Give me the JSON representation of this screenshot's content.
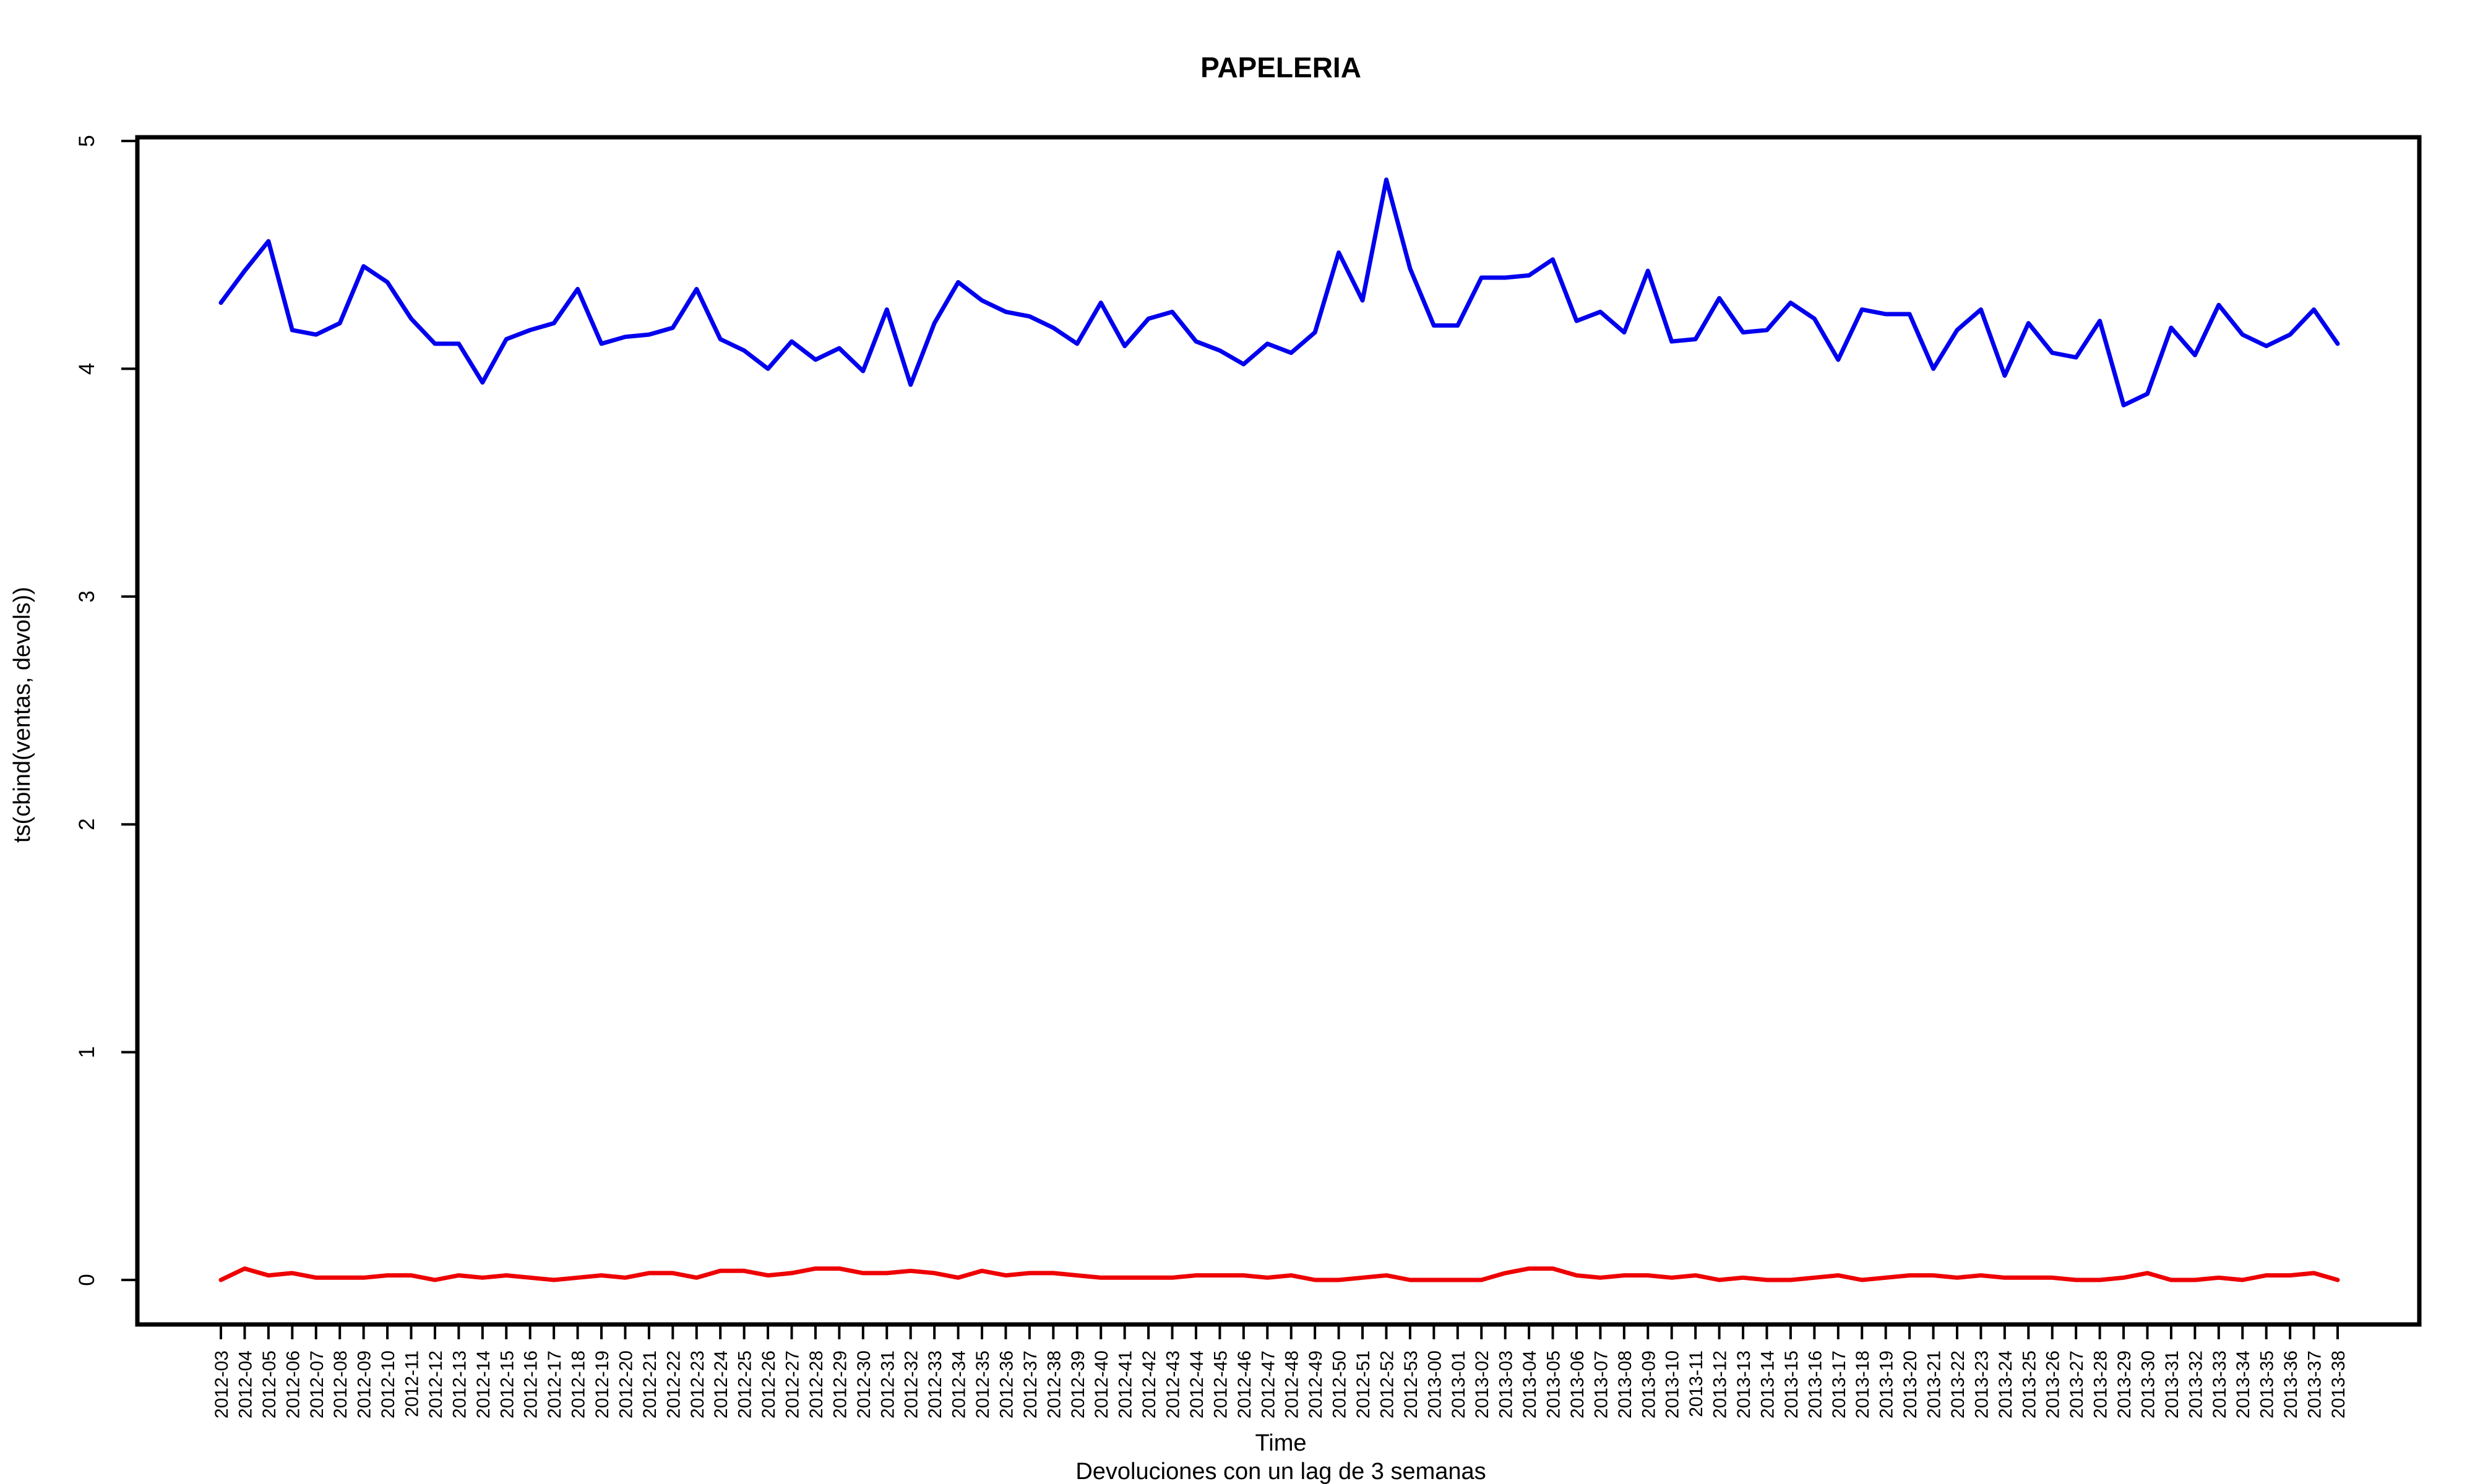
{
  "chart_data": {
    "type": "line",
    "title": "PAPELERIA",
    "xlabel": "Time",
    "ylabel": "ts(cbind(ventas, devols))",
    "subtitle": "Devoluciones con un lag de 3 semanas",
    "ylim": [
      0,
      5
    ],
    "yticks": [
      0,
      1,
      2,
      3,
      4,
      5
    ],
    "grid": false,
    "categories": [
      "2012-03",
      "2012-04",
      "2012-05",
      "2012-06",
      "2012-07",
      "2012-08",
      "2012-09",
      "2012-10",
      "2012-11",
      "2012-12",
      "2012-13",
      "2012-14",
      "2012-15",
      "2012-16",
      "2012-17",
      "2012-18",
      "2012-19",
      "2012-20",
      "2012-21",
      "2012-22",
      "2012-23",
      "2012-24",
      "2012-25",
      "2012-26",
      "2012-27",
      "2012-28",
      "2012-29",
      "2012-30",
      "2012-31",
      "2012-32",
      "2012-33",
      "2012-34",
      "2012-35",
      "2012-36",
      "2012-37",
      "2012-38",
      "2012-39",
      "2012-40",
      "2012-41",
      "2012-42",
      "2012-43",
      "2012-44",
      "2012-45",
      "2012-46",
      "2012-47",
      "2012-48",
      "2012-49",
      "2012-50",
      "2012-51",
      "2012-52",
      "2012-53",
      "2013-00",
      "2013-01",
      "2013-02",
      "2013-03",
      "2013-04",
      "2013-05",
      "2013-06",
      "2013-07",
      "2013-08",
      "2013-09",
      "2013-10",
      "2013-11",
      "2013-12",
      "2013-13",
      "2013-14",
      "2013-15",
      "2013-16",
      "2013-17",
      "2013-18",
      "2013-19",
      "2013-20",
      "2013-21",
      "2013-22",
      "2013-23",
      "2013-24",
      "2013-25",
      "2013-26",
      "2013-27",
      "2013-28",
      "2013-29",
      "2013-30",
      "2013-31",
      "2013-32",
      "2013-33",
      "2013-34",
      "2013-35",
      "2013-36",
      "2013-37",
      "2013-38"
    ],
    "series": [
      {
        "color": "#0000ee",
        "values": [
          4.29,
          4.43,
          4.56,
          4.17,
          4.15,
          4.2,
          4.45,
          4.38,
          4.22,
          4.11,
          4.11,
          3.94,
          4.13,
          4.17,
          4.2,
          4.35,
          4.11,
          4.14,
          4.15,
          4.18,
          4.35,
          4.13,
          4.08,
          4.0,
          4.12,
          4.04,
          4.09,
          3.99,
          4.26,
          3.93,
          4.2,
          4.38,
          4.3,
          4.25,
          4.23,
          4.18,
          4.11,
          4.29,
          4.1,
          4.22,
          4.25,
          4.12,
          4.08,
          4.02,
          4.11,
          4.07,
          4.16,
          4.51,
          4.3,
          4.83,
          4.44,
          4.19,
          4.19,
          4.4,
          4.4,
          4.41,
          4.48,
          4.21,
          4.25,
          4.16,
          4.43,
          4.12,
          4.13,
          4.31,
          4.16,
          4.17,
          4.29,
          4.22,
          4.04,
          4.26,
          4.24,
          4.24,
          4.0,
          4.17,
          4.26,
          3.97,
          4.2,
          4.07,
          4.05,
          4.21,
          3.84,
          3.89,
          4.18,
          4.06,
          4.28,
          4.15,
          4.1,
          4.15,
          4.26,
          4.11
        ]
      },
      {
        "color": "#ee0000",
        "values": [
          0.0,
          0.05,
          0.02,
          0.03,
          0.01,
          0.01,
          0.01,
          0.02,
          0.02,
          0.0,
          0.02,
          0.01,
          0.02,
          0.01,
          0.0,
          0.01,
          0.02,
          0.01,
          0.03,
          0.03,
          0.01,
          0.04,
          0.04,
          0.02,
          0.03,
          0.05,
          0.05,
          0.03,
          0.03,
          0.04,
          0.03,
          0.01,
          0.04,
          0.02,
          0.03,
          0.03,
          0.02,
          0.01,
          0.01,
          0.01,
          0.01,
          0.02,
          0.02,
          0.02,
          0.01,
          0.02,
          0.0,
          0.0,
          0.01,
          0.02,
          0.0,
          0.0,
          0.0,
          0.0,
          0.03,
          0.05,
          0.05,
          0.02,
          0.01,
          0.02,
          0.02,
          0.01,
          0.02,
          0.0,
          0.01,
          0.0,
          0.0,
          0.01,
          0.02,
          0.0,
          0.01,
          0.02,
          0.02,
          0.01,
          0.02,
          0.01,
          0.01,
          0.01,
          0.0,
          0.0,
          0.01,
          0.03,
          0.0,
          0.0,
          0.01,
          0.0,
          0.02,
          0.02,
          0.03,
          0.0
        ]
      }
    ]
  }
}
